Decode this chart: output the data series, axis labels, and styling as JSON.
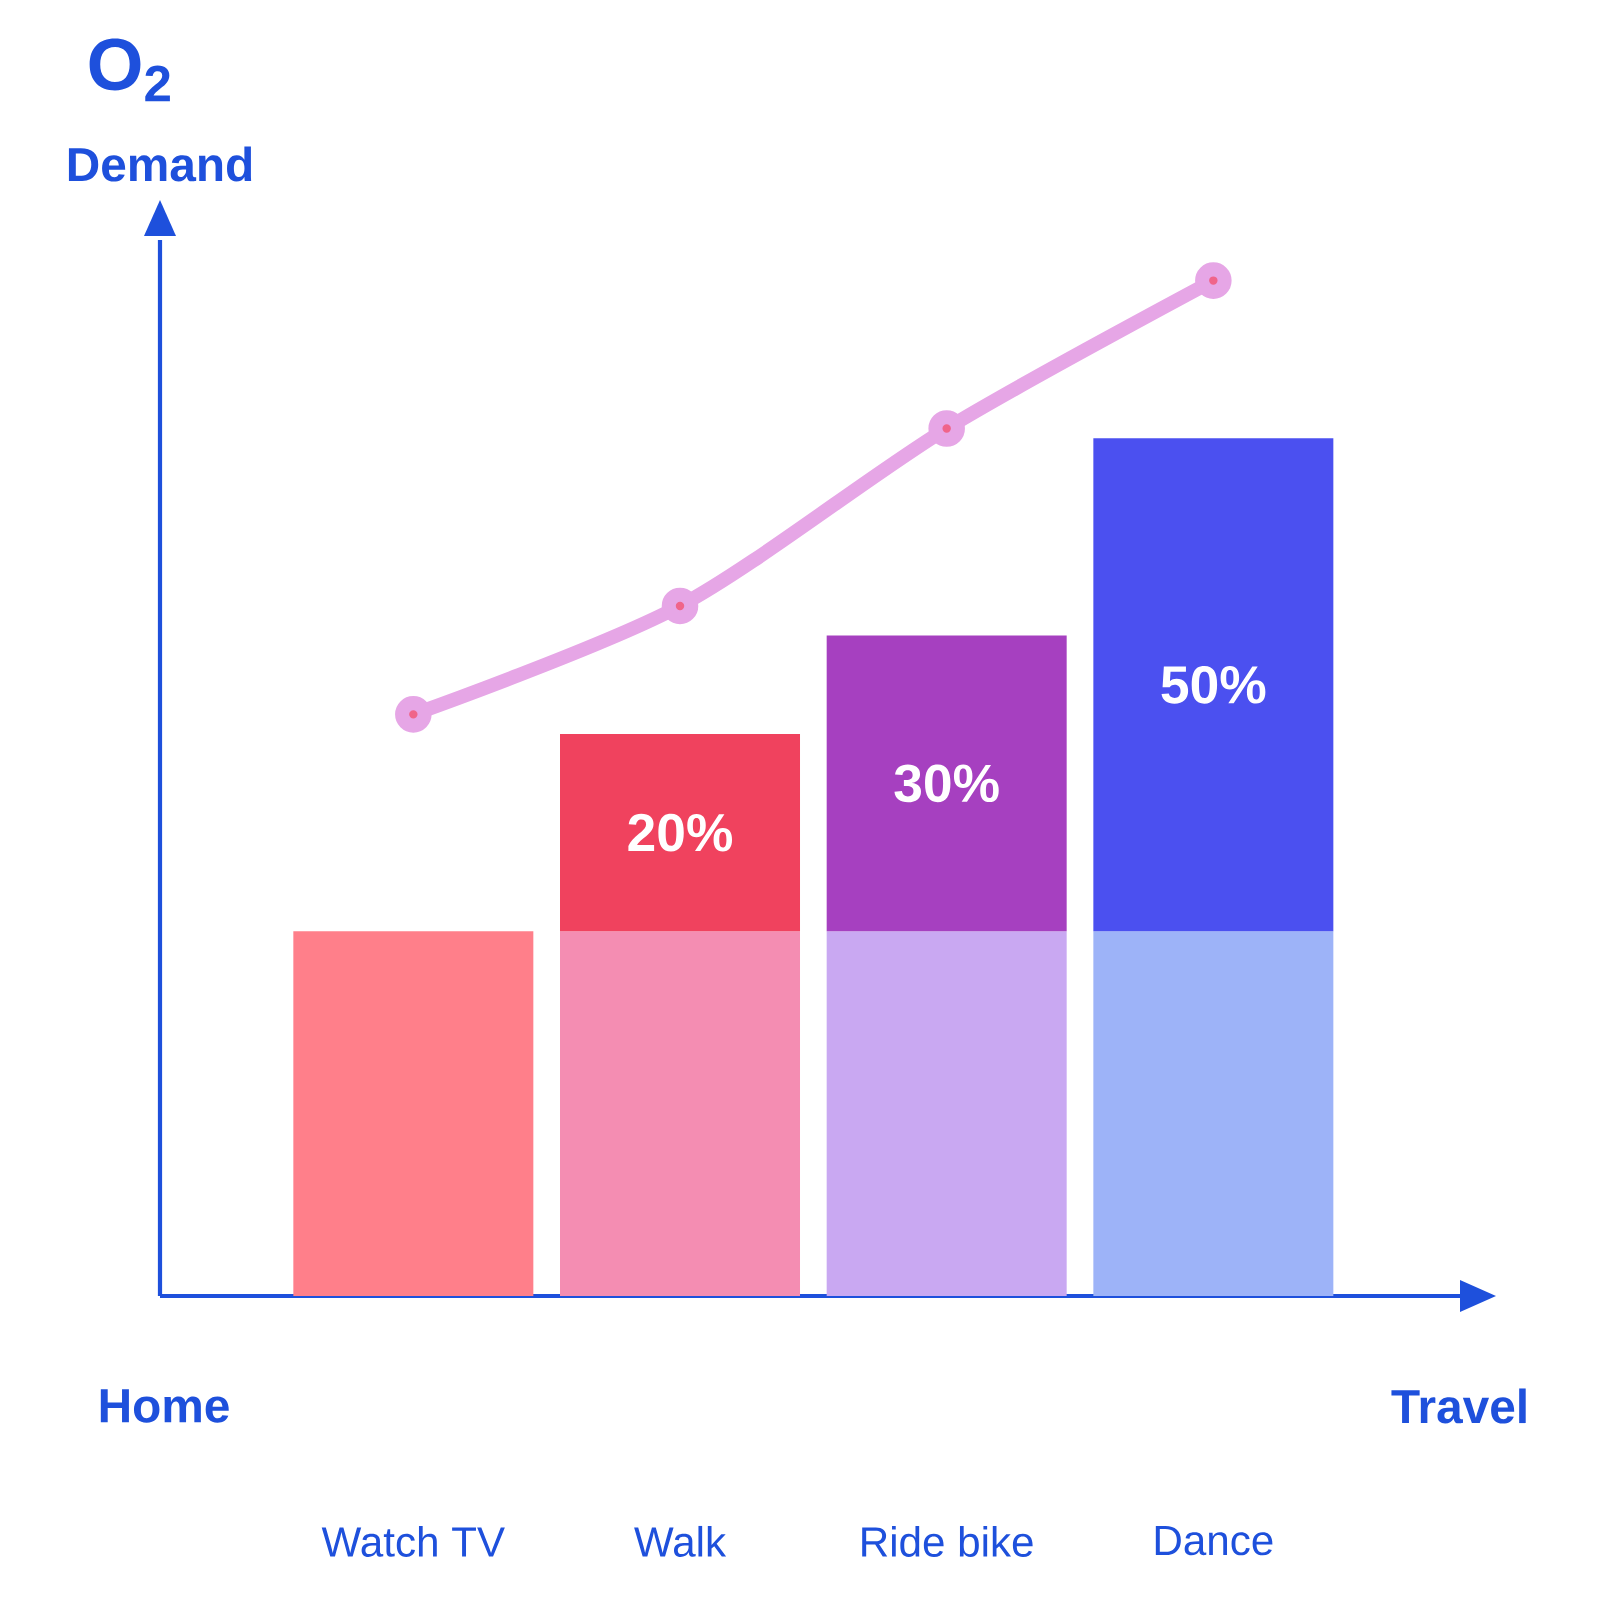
{
  "chart_data": {
    "type": "bar",
    "stacked": true,
    "ylabel": "Demand",
    "xlabel": "Travel",
    "annotations": [
      "O$_{2}$",
      "Home"
    ],
    "categories": [
      "Watch TV",
      "Walk",
      "Ride bike",
      "Dance"
    ],
    "series": [
      {
        "colors": [
          "#ff7f8a",
          "#f48db2",
          "#c9a8f2",
          "#9db3f8"
        ],
        "values": [
          37,
          37,
          37,
          37
        ]
      },
      {
        "colors": [
          "#f0425e",
          "#f0425e",
          "#a640c0",
          "#4b50f0"
        ],
        "values": [
          null,
          20,
          30,
          50
        ],
        "value_labels": [
          null,
          "20%",
          "30%",
          "50%"
        ]
      },
      {
        "type": "line",
        "color": "#e6a6e6",
        "marker": "circle",
        "values": [
          59,
          70,
          88,
          103
        ]
      }
    ]
  }
}
